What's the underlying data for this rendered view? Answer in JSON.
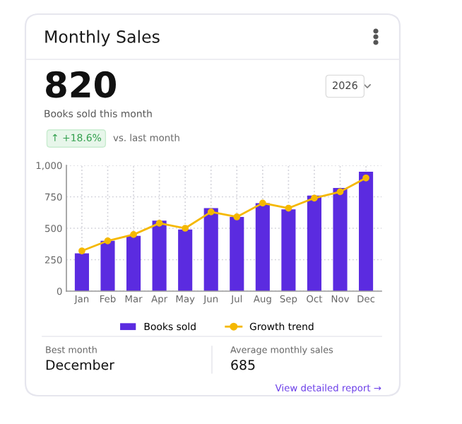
{
  "chart_data": {
    "type": "bar",
    "title": "Monthly Sales",
    "categories": [
      "Jan",
      "Feb",
      "Mar",
      "Apr",
      "May",
      "Jun",
      "Jul",
      "Aug",
      "Sep",
      "Oct",
      "Nov",
      "Dec"
    ],
    "series": [
      {
        "name": "Books sold",
        "color": "#5b2be0",
        "values": [
          300,
          400,
          440,
          560,
          490,
          660,
          590,
          700,
          650,
          760,
          820,
          950
        ]
      },
      {
        "name": "Growth trend",
        "type": "line",
        "color": "#f5b800",
        "marker": "circle",
        "values": [
          320,
          400,
          450,
          540,
          500,
          630,
          590,
          700,
          660,
          740,
          790,
          900
        ]
      }
    ],
    "ylim": [
      0,
      1000
    ],
    "yticks": [
      0,
      {
        "value": 250,
        "label": "250"
      },
      {
        "value": 500,
        "label": "500"
      },
      {
        "value": 750,
        "label": "750"
      },
      {
        "value": 1000,
        "label": "1,000"
      }
    ],
    "grid": true,
    "legend": "bottom",
    "annotations": [
      "820",
      "Books sold this month",
      "↑ +18.6%",
      "vs. last month",
      "2026",
      "Best month",
      "December",
      "Average monthly sales",
      "685",
      "View detailed report →"
    ]
  }
}
